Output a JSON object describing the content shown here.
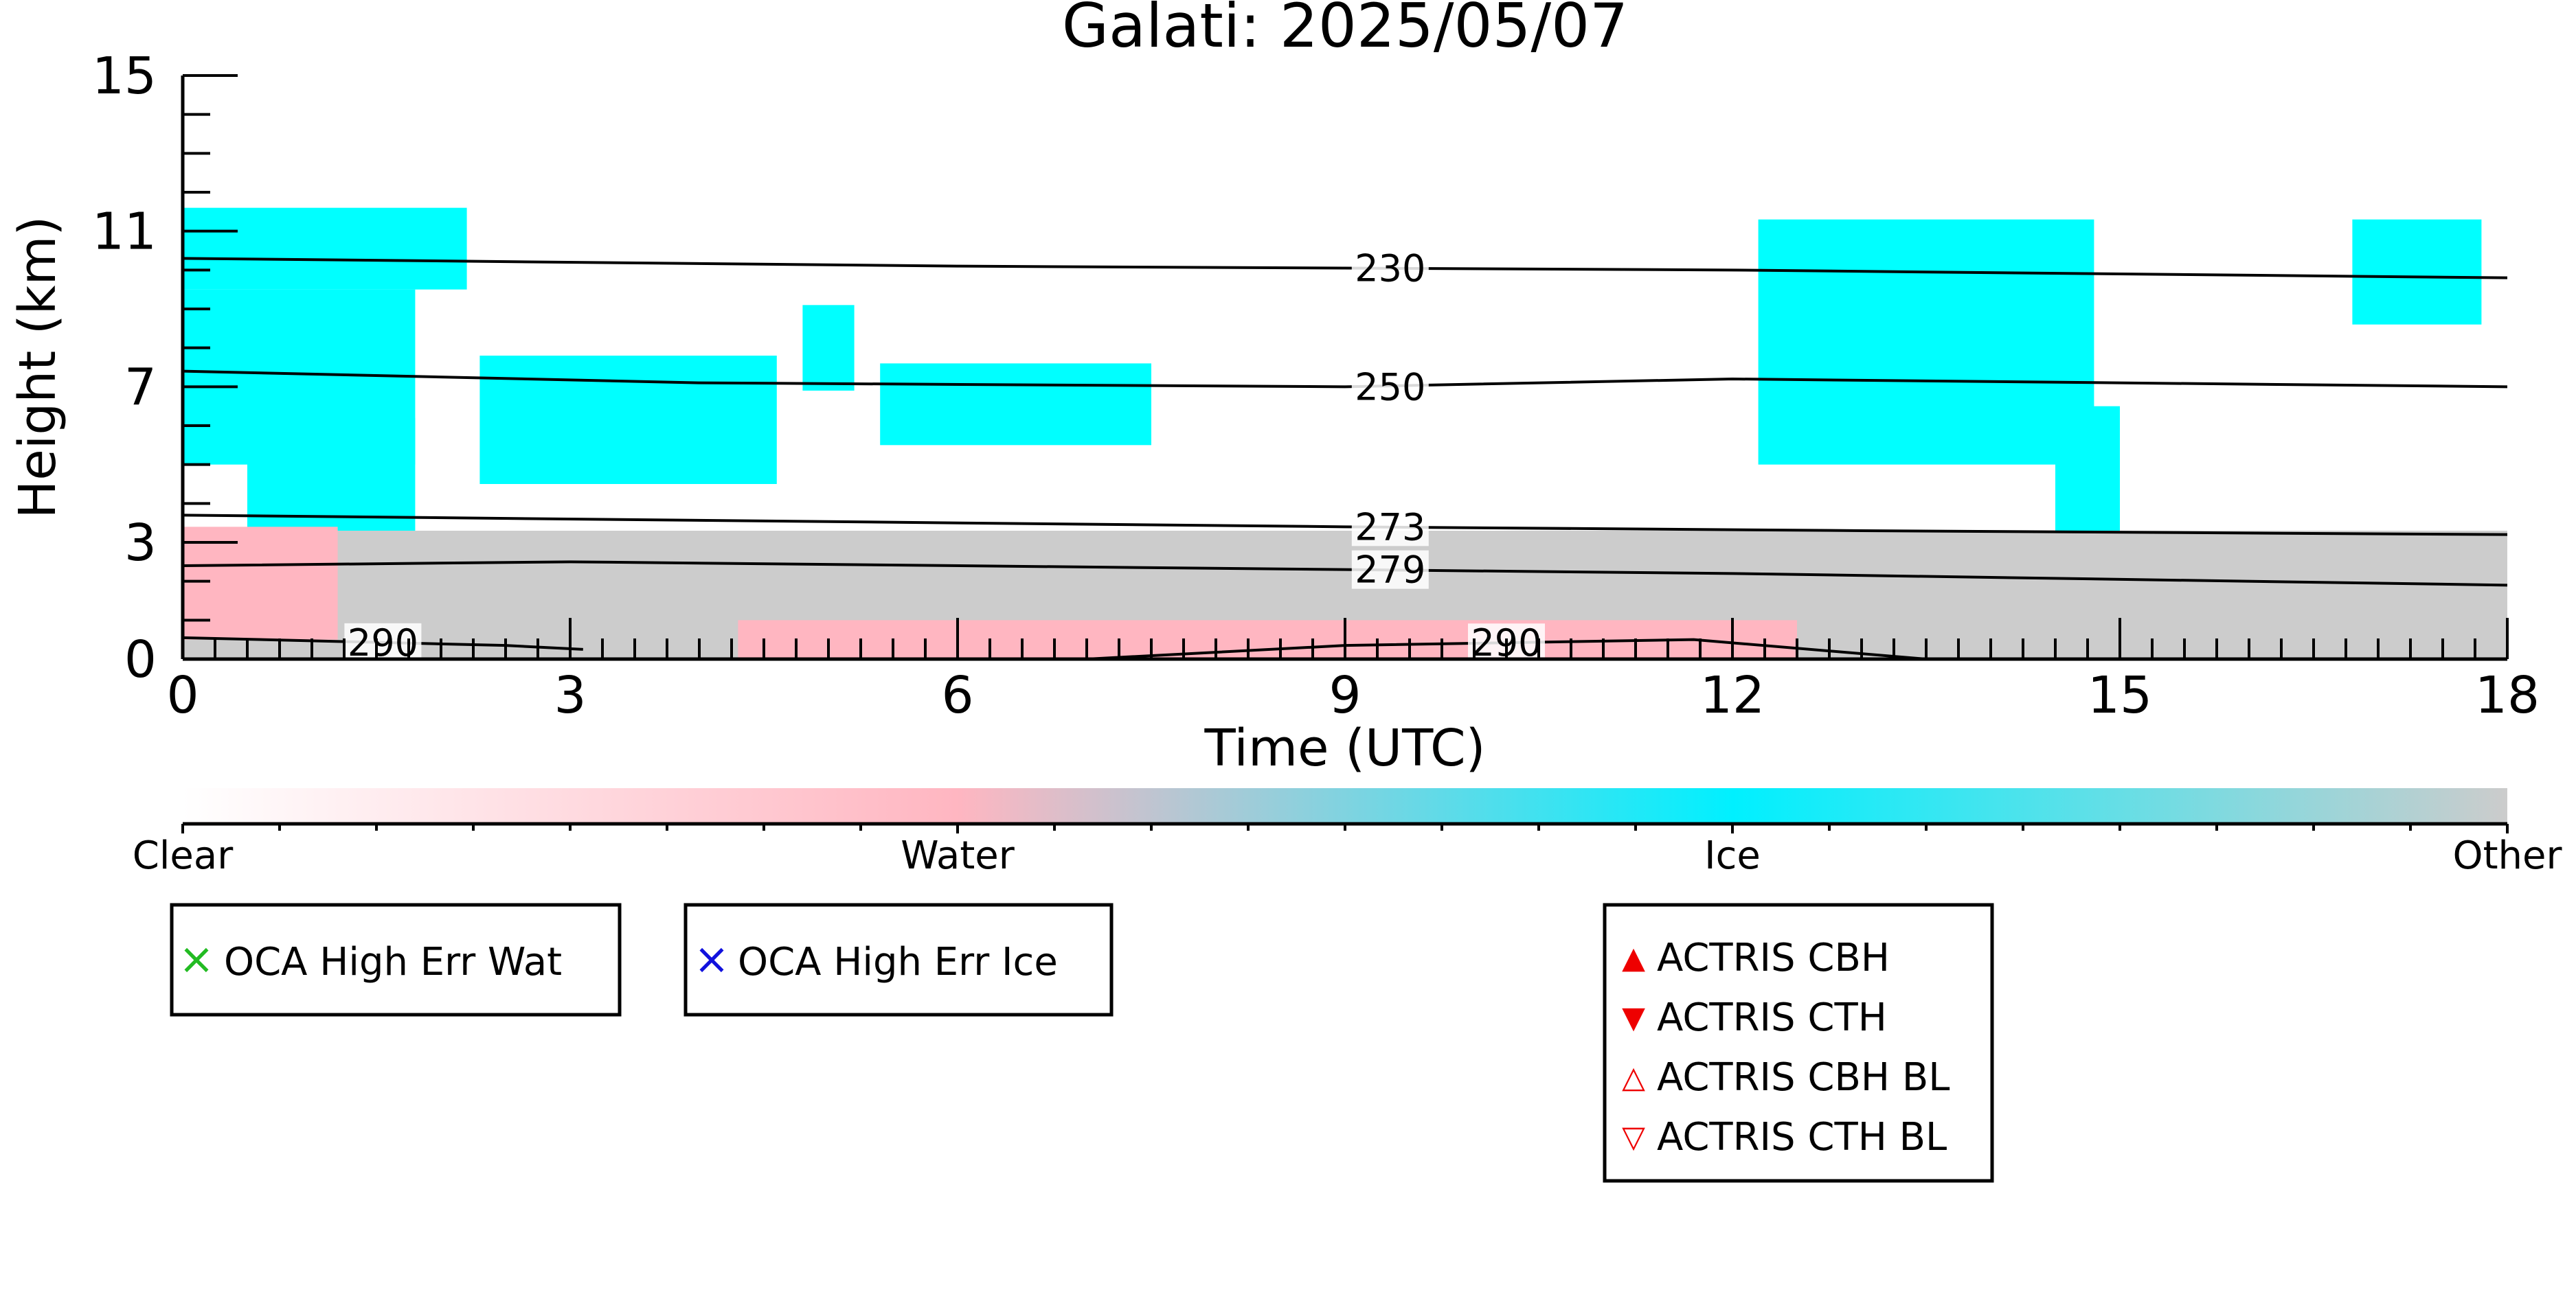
{
  "chart_data": {
    "type": "heatmap",
    "title": "Galati: 2025/05/07",
    "xlabel": "Time (UTC)",
    "ylabel": "Height (km)",
    "xlim": [
      0,
      18
    ],
    "ylim": [
      0,
      15
    ],
    "x_ticks": [
      "0",
      "3",
      "6",
      "9",
      "12",
      "15",
      "18"
    ],
    "y_ticks": [
      "0",
      "3",
      "7",
      "11",
      "15"
    ],
    "classes": [
      {
        "name": "Clear",
        "color": "#ffffff"
      },
      {
        "name": "Water",
        "color": "#ffb6c1"
      },
      {
        "name": "Ice",
        "color": "#00ffff"
      },
      {
        "name": "Other",
        "color": "#cccccc"
      }
    ],
    "colorbar_labels": [
      "Clear",
      "Water",
      "Ice",
      "Other"
    ],
    "isotherms": [
      {
        "label": "230",
        "x": [
          0,
          6,
          12,
          18
        ],
        "y": [
          10.3,
          10.1,
          10.0,
          9.8
        ]
      },
      {
        "label": "250",
        "x": [
          0,
          4,
          9,
          12,
          18
        ],
        "y": [
          7.4,
          7.1,
          7.0,
          7.2,
          7.0
        ]
      },
      {
        "label": "273",
        "x": [
          0,
          9,
          13,
          18
        ],
        "y": [
          3.7,
          3.4,
          3.3,
          3.2
        ]
      },
      {
        "label": "279",
        "x": [
          0,
          3,
          9,
          12,
          14,
          18
        ],
        "y": [
          2.4,
          2.5,
          2.3,
          2.2,
          2.1,
          1.9
        ]
      },
      {
        "label": "290",
        "x": [
          0,
          2.5,
          3.1
        ],
        "y": [
          0.55,
          0.35,
          0.25
        ]
      },
      {
        "label": "290",
        "x": [
          7,
          9,
          11.7,
          13.5
        ],
        "y": [
          0,
          0.35,
          0.5,
          0
        ]
      }
    ],
    "cloud_regions": [
      {
        "class": "Ice",
        "x": [
          0,
          2.2
        ],
        "y": [
          9.5,
          11.6
        ]
      },
      {
        "class": "Ice",
        "x": [
          0,
          1.8
        ],
        "y": [
          5.0,
          9.5
        ]
      },
      {
        "class": "Ice",
        "x": [
          0.5,
          1.8
        ],
        "y": [
          3.0,
          6.2
        ]
      },
      {
        "class": "Ice",
        "x": [
          2.3,
          4.6
        ],
        "y": [
          4.5,
          7.8
        ]
      },
      {
        "class": "Ice",
        "x": [
          4.8,
          5.2
        ],
        "y": [
          6.9,
          9.1
        ]
      },
      {
        "class": "Ice",
        "x": [
          5.4,
          7.5
        ],
        "y": [
          5.5,
          7.6
        ]
      },
      {
        "class": "Ice",
        "x": [
          12.2,
          14.8
        ],
        "y": [
          5.0,
          11.3
        ]
      },
      {
        "class": "Ice",
        "x": [
          14.5,
          15.0
        ],
        "y": [
          3.2,
          6.5
        ]
      },
      {
        "class": "Ice",
        "x": [
          16.8,
          17.8
        ],
        "y": [
          8.6,
          11.3
        ]
      },
      {
        "class": "Other",
        "x": [
          0,
          18
        ],
        "y": [
          0,
          3.3
        ]
      },
      {
        "class": "Water",
        "x": [
          0,
          1.2
        ],
        "y": [
          0.5,
          3.4
        ]
      },
      {
        "class": "Water",
        "x": [
          4.3,
          12.5
        ],
        "y": [
          0,
          1.0
        ]
      }
    ]
  },
  "legends": {
    "oca_water": {
      "label": "OCA High Err Wat",
      "symbol": "×",
      "color": "#22bb22"
    },
    "oca_ice": {
      "label": "OCA High Err Ice",
      "symbol": "×",
      "color": "#1111dd"
    },
    "actris": [
      {
        "label": "ACTRIS CBH",
        "symbol": "▲",
        "color": "#ee0000"
      },
      {
        "label": "ACTRIS CTH",
        "symbol": "▼",
        "color": "#ee0000"
      },
      {
        "label": "ACTRIS CBH BL",
        "symbol": "△",
        "color": "#ee0000"
      },
      {
        "label": "ACTRIS CTH BL",
        "symbol": "▽",
        "color": "#ee0000"
      }
    ]
  }
}
